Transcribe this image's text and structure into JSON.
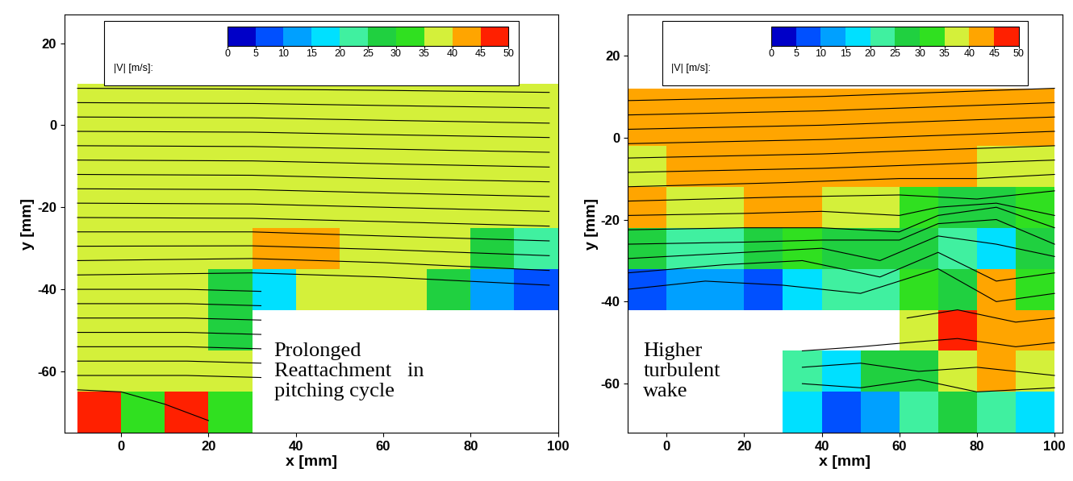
{
  "chart_data": [
    {
      "type": "heatmap",
      "x_label": "x [mm]",
      "y_label": "y [mm]",
      "xlim": [
        -13,
        100
      ],
      "ylim": [
        -75,
        27
      ],
      "xticks": [
        0,
        20,
        40,
        60,
        80,
        100
      ],
      "yticks": [
        -60,
        -40,
        -20,
        0,
        20
      ],
      "colorbar_label": "|V| [m/s]:",
      "colorbar_range": [
        0,
        50
      ],
      "colorbar_ticks": [
        0,
        5,
        10,
        15,
        20,
        25,
        30,
        35,
        40,
        45,
        50
      ],
      "annotation": "Prolonged\nReattachment   in\npitching cycle",
      "x_edges": [
        -10,
        0,
        10,
        20,
        30,
        40,
        50,
        60,
        70,
        80,
        90,
        100
      ],
      "y_edges": [
        -75,
        -65,
        -55,
        -45,
        -35,
        -25,
        -15,
        -5,
        10
      ],
      "cells": [
        [
          48,
          30,
          45,
          32,
          null,
          null,
          null,
          null,
          null,
          null,
          null
        ],
        [
          37,
          37,
          37,
          37,
          null,
          null,
          null,
          null,
          null,
          null,
          null
        ],
        [
          37,
          37,
          37,
          25,
          null,
          null,
          null,
          null,
          null,
          null,
          null
        ],
        [
          37,
          37,
          37,
          25,
          15,
          37,
          37,
          37,
          25,
          10,
          8
        ],
        [
          37,
          37,
          37,
          37,
          40,
          42,
          37,
          37,
          37,
          25,
          22
        ],
        [
          37,
          37,
          37,
          37,
          37,
          37,
          37,
          37,
          37,
          37,
          37
        ],
        [
          37,
          37,
          37,
          37,
          37,
          37,
          37,
          37,
          37,
          37,
          37
        ],
        [
          37,
          37,
          37,
          37,
          37,
          37,
          37,
          37,
          37,
          37,
          37
        ]
      ],
      "streamlines": [
        {
          "x": [
            -10,
            30,
            60,
            98
          ],
          "y": [
            9,
            8.8,
            8.5,
            8
          ]
        },
        {
          "x": [
            -10,
            30,
            60,
            98
          ],
          "y": [
            5.5,
            5.3,
            4.8,
            4.2
          ]
        },
        {
          "x": [
            -10,
            30,
            60,
            98
          ],
          "y": [
            2,
            1.8,
            1.2,
            0.5
          ]
        },
        {
          "x": [
            -10,
            30,
            60,
            98
          ],
          "y": [
            -1.5,
            -1.7,
            -2.3,
            -3
          ]
        },
        {
          "x": [
            -10,
            30,
            60,
            98
          ],
          "y": [
            -5,
            -5.2,
            -5.8,
            -6.6
          ]
        },
        {
          "x": [
            -10,
            30,
            60,
            98
          ],
          "y": [
            -8.5,
            -8.7,
            -9.4,
            -10.2
          ]
        },
        {
          "x": [
            -10,
            30,
            60,
            98
          ],
          "y": [
            -12,
            -12.2,
            -13,
            -13.8
          ]
        },
        {
          "x": [
            -10,
            30,
            60,
            98
          ],
          "y": [
            -15.5,
            -15.7,
            -16.5,
            -17.4
          ]
        },
        {
          "x": [
            -10,
            30,
            60,
            98
          ],
          "y": [
            -19,
            -19.2,
            -20,
            -21
          ]
        },
        {
          "x": [
            -10,
            30,
            60,
            98
          ],
          "y": [
            -22.5,
            -22.7,
            -23.5,
            -24.6
          ]
        },
        {
          "x": [
            -10,
            30,
            60,
            98
          ],
          "y": [
            -26,
            -26,
            -27,
            -28.2
          ]
        },
        {
          "x": [
            -10,
            30,
            60,
            98
          ],
          "y": [
            -29.5,
            -29.4,
            -30.3,
            -31.8
          ]
        },
        {
          "x": [
            -10,
            30,
            60,
            98
          ],
          "y": [
            -33,
            -32.5,
            -33.5,
            -35.4
          ]
        },
        {
          "x": [
            -10,
            30,
            60,
            98
          ],
          "y": [
            -36.5,
            -36,
            -37,
            -39
          ]
        },
        {
          "x": [
            -10,
            15,
            32
          ],
          "y": [
            -40,
            -40,
            -40.5
          ]
        },
        {
          "x": [
            -10,
            15,
            32
          ],
          "y": [
            -43.5,
            -43.5,
            -44
          ]
        },
        {
          "x": [
            -10,
            15,
            32
          ],
          "y": [
            -47,
            -47,
            -47.5
          ]
        },
        {
          "x": [
            -10,
            15,
            32
          ],
          "y": [
            -50.5,
            -50.5,
            -51
          ]
        },
        {
          "x": [
            -10,
            15,
            32
          ],
          "y": [
            -54,
            -54,
            -54.5
          ]
        },
        {
          "x": [
            -10,
            15,
            32
          ],
          "y": [
            -57.5,
            -57.5,
            -58
          ]
        },
        {
          "x": [
            -10,
            15,
            32
          ],
          "y": [
            -61,
            -61,
            -61.5
          ]
        },
        {
          "x": [
            -10,
            0,
            10,
            20
          ],
          "y": [
            -64.5,
            -65,
            -68,
            -72
          ]
        }
      ]
    },
    {
      "type": "heatmap",
      "x_label": "x [mm]",
      "y_label": "y [mm]",
      "xlim": [
        -10,
        102
      ],
      "ylim": [
        -72,
        30
      ],
      "xticks": [
        0,
        20,
        40,
        60,
        80,
        100
      ],
      "yticks": [
        -60,
        -40,
        -20,
        0,
        20
      ],
      "colorbar_label": "|V| [m/s]:",
      "colorbar_range": [
        0,
        50
      ],
      "colorbar_ticks": [
        0,
        5,
        10,
        15,
        20,
        25,
        30,
        35,
        40,
        45,
        50
      ],
      "annotation": "Higher\nturbulent\nwake",
      "x_edges": [
        -10,
        0,
        10,
        20,
        30,
        40,
        50,
        60,
        70,
        80,
        90,
        100
      ],
      "y_edges": [
        -72,
        -62,
        -52,
        -42,
        -32,
        -22,
        -12,
        -2,
        12
      ],
      "cells": [
        [
          null,
          null,
          null,
          null,
          15,
          8,
          10,
          20,
          25,
          20,
          15
        ],
        [
          null,
          null,
          null,
          null,
          20,
          15,
          25,
          25,
          38,
          40,
          35
        ],
        [
          null,
          null,
          null,
          null,
          null,
          null,
          null,
          35,
          45,
          42,
          40
        ],
        [
          8,
          10,
          10,
          5,
          15,
          20,
          20,
          30,
          25,
          40,
          30
        ],
        [
          28,
          20,
          20,
          25,
          30,
          28,
          25,
          25,
          20,
          15,
          25
        ],
        [
          40,
          38,
          38,
          42,
          40,
          38,
          38,
          33,
          25,
          25,
          30
        ],
        [
          38,
          40,
          42,
          42,
          42,
          42,
          42,
          40,
          40,
          38,
          38
        ],
        [
          42,
          42,
          42,
          42,
          42,
          42,
          42,
          42,
          42,
          42,
          42
        ]
      ],
      "streamlines": [
        {
          "x": [
            -10,
            40,
            100
          ],
          "y": [
            9,
            10,
            12
          ]
        },
        {
          "x": [
            -10,
            40,
            100
          ],
          "y": [
            5.5,
            6.5,
            8.5
          ]
        },
        {
          "x": [
            -10,
            40,
            100
          ],
          "y": [
            2,
            3,
            5
          ]
        },
        {
          "x": [
            -10,
            40,
            100
          ],
          "y": [
            -1.5,
            -0.5,
            1.5
          ]
        },
        {
          "x": [
            -10,
            40,
            100
          ],
          "y": [
            -5,
            -4,
            -2
          ]
        },
        {
          "x": [
            -10,
            40,
            100
          ],
          "y": [
            -8.5,
            -7.5,
            -5.5
          ]
        },
        {
          "x": [
            -10,
            30,
            60,
            80,
            100
          ],
          "y": [
            -12,
            -11,
            -10,
            -10,
            -9
          ]
        },
        {
          "x": [
            -10,
            30,
            60,
            80,
            100
          ],
          "y": [
            -15.5,
            -14.5,
            -14,
            -15,
            -13
          ]
        },
        {
          "x": [
            -10,
            20,
            40,
            60,
            70,
            85,
            100
          ],
          "y": [
            -19,
            -18.5,
            -18,
            -19,
            -17,
            -16,
            -19
          ]
        },
        {
          "x": [
            -10,
            20,
            40,
            60,
            70,
            85,
            100
          ],
          "y": [
            -22.5,
            -22,
            -22,
            -23,
            -19,
            -17,
            -22
          ]
        },
        {
          "x": [
            -10,
            20,
            40,
            60,
            70,
            85,
            100
          ],
          "y": [
            -26,
            -25.5,
            -25,
            -25,
            -21,
            -20,
            -26
          ]
        },
        {
          "x": [
            -10,
            20,
            40,
            55,
            70,
            85,
            100
          ],
          "y": [
            -29.5,
            -28,
            -27,
            -30,
            -24,
            -26,
            -29
          ]
        },
        {
          "x": [
            -10,
            15,
            35,
            55,
            70,
            85,
            100
          ],
          "y": [
            -33,
            -31,
            -30,
            -34,
            -28,
            -35,
            -33
          ]
        },
        {
          "x": [
            -10,
            10,
            30,
            50,
            70,
            85,
            100
          ],
          "y": [
            -37,
            -35,
            -36,
            -38,
            -32,
            -40,
            -38
          ]
        },
        {
          "x": [
            62,
            75,
            90,
            100
          ],
          "y": [
            -44,
            -42,
            -45,
            -44
          ]
        },
        {
          "x": [
            35,
            50,
            62,
            75,
            90,
            100
          ],
          "y": [
            -52,
            -51,
            -50,
            -49,
            -51,
            -50
          ]
        },
        {
          "x": [
            35,
            50,
            65,
            80,
            100
          ],
          "y": [
            -56,
            -55,
            -57,
            -56,
            -58
          ]
        },
        {
          "x": [
            35,
            50,
            65,
            80,
            100
          ],
          "y": [
            -60,
            -61,
            -59,
            -62,
            -61
          ]
        }
      ]
    }
  ]
}
